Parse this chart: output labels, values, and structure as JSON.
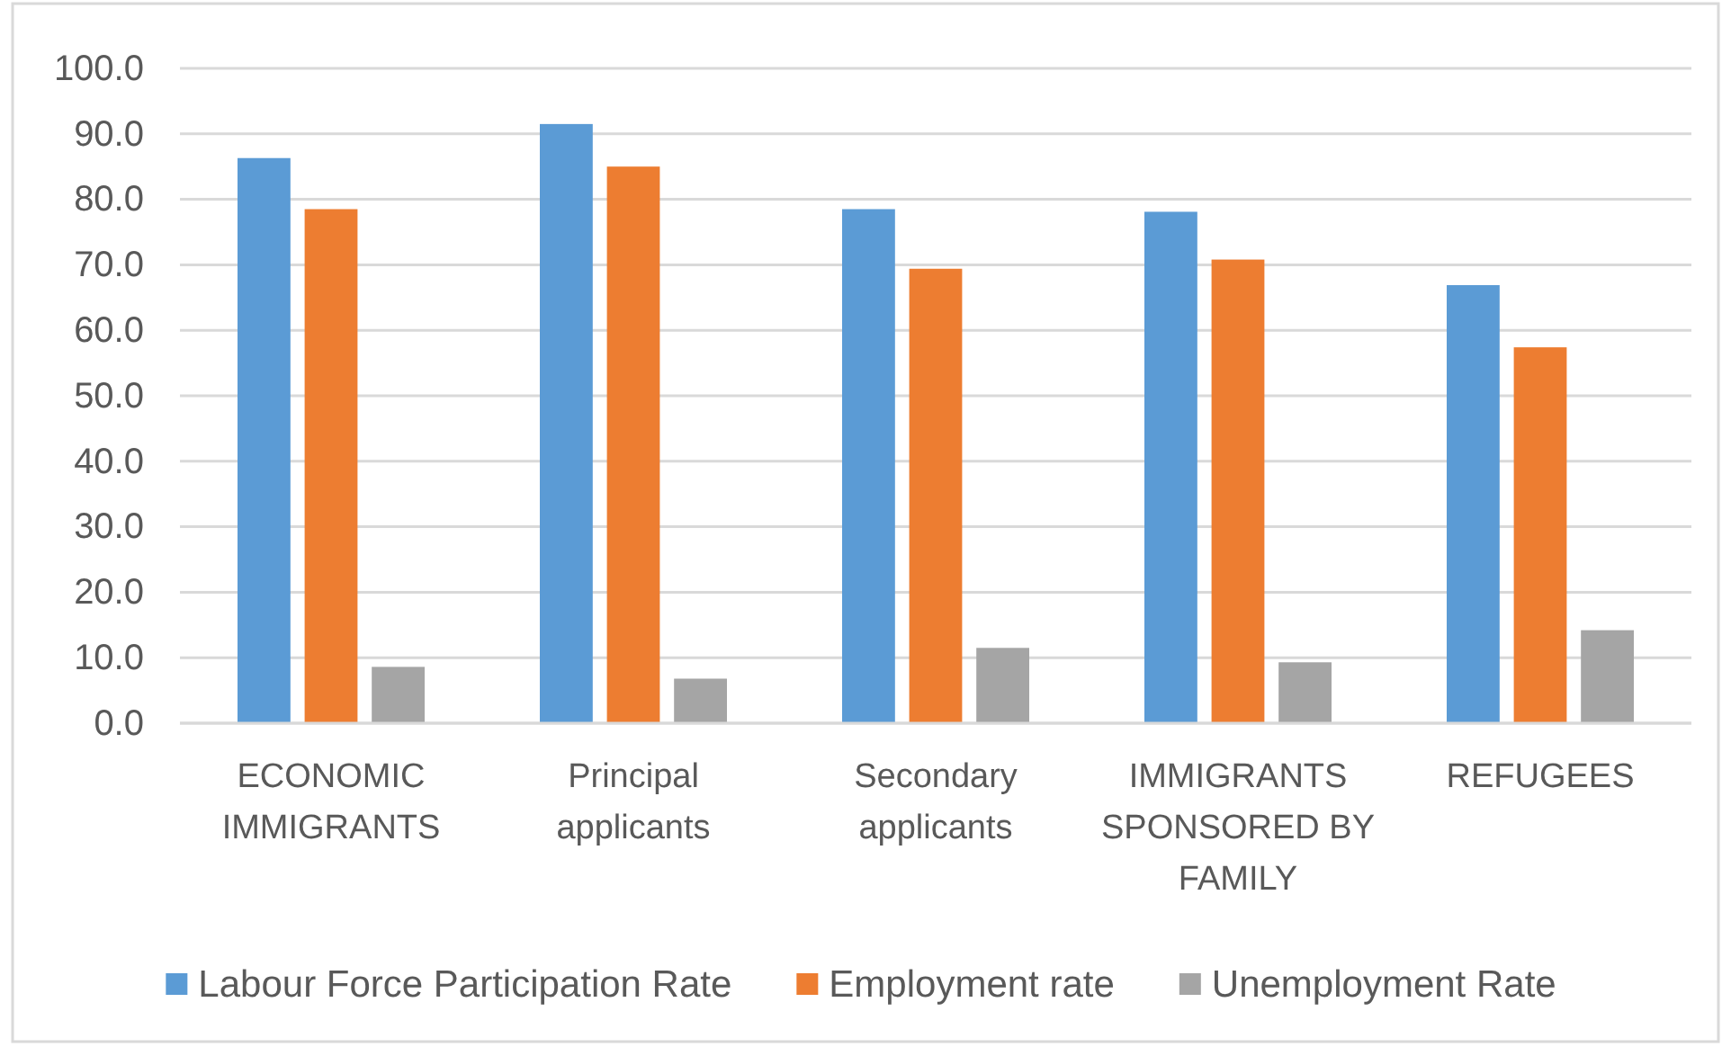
{
  "chart_data": {
    "type": "bar",
    "categories": [
      "ECONOMIC IMMIGRANTS",
      "Principal applicants",
      "Secondary applicants",
      "IMMIGRANTS SPONSORED BY FAMILY",
      "REFUGEES"
    ],
    "series": [
      {
        "name": "Labour Force Participation Rate",
        "color": "#5b9bd5",
        "values": [
          86.3,
          91.5,
          78.5,
          78.1,
          66.9
        ]
      },
      {
        "name": "Employment rate",
        "color": "#ed7d31",
        "values": [
          78.5,
          85.0,
          69.4,
          70.8,
          57.4
        ]
      },
      {
        "name": "Unemployment Rate",
        "color": "#a5a5a5",
        "values": [
          8.6,
          6.8,
          11.5,
          9.3,
          14.2
        ]
      }
    ],
    "ylim": [
      0,
      100
    ],
    "yticks": [
      {
        "value": 0,
        "label": "0.0"
      },
      {
        "value": 10,
        "label": "10.0"
      },
      {
        "value": 20,
        "label": "20.0"
      },
      {
        "value": 30,
        "label": "30.0"
      },
      {
        "value": 40,
        "label": "40.0"
      },
      {
        "value": 50,
        "label": "50.0"
      },
      {
        "value": 60,
        "label": "60.0"
      },
      {
        "value": 70,
        "label": "70.0"
      },
      {
        "value": 80,
        "label": "80.0"
      },
      {
        "value": 90,
        "label": "90.0"
      },
      {
        "value": 100,
        "label": "100.0"
      }
    ],
    "grid": "y",
    "legend": "bottom"
  }
}
